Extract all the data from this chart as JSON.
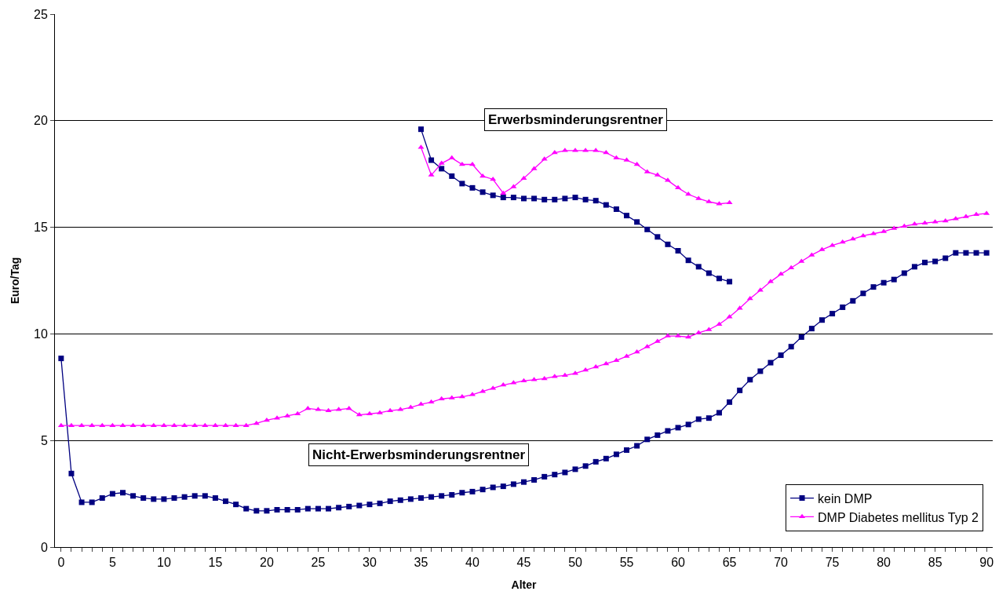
{
  "chart_data": {
    "type": "line",
    "xlabel": "Alter",
    "ylabel": "Euro/Tag",
    "xlim": [
      -0.6,
      90.6
    ],
    "ylim": [
      0,
      25
    ],
    "yticks": [
      0,
      5,
      10,
      15,
      20,
      25
    ],
    "xticks": [
      0,
      {
        "value": 1,
        "label": null
      },
      {
        "value": 2,
        "label": null
      },
      {
        "value": 3,
        "label": null
      },
      {
        "value": 4,
        "label": null
      },
      5,
      {
        "value": 6,
        "label": null
      },
      {
        "value": 7,
        "label": null
      },
      {
        "value": 8,
        "label": null
      },
      {
        "value": 9,
        "label": null
      },
      10,
      {
        "value": 11,
        "label": null
      },
      {
        "value": 12,
        "label": null
      },
      {
        "value": 13,
        "label": null
      },
      {
        "value": 14,
        "label": null
      },
      15,
      {
        "value": 16,
        "label": null
      },
      {
        "value": 17,
        "label": null
      },
      {
        "value": 18,
        "label": null
      },
      {
        "value": 19,
        "label": null
      },
      20,
      {
        "value": 21,
        "label": null
      },
      {
        "value": 22,
        "label": null
      },
      {
        "value": 23,
        "label": null
      },
      {
        "value": 24,
        "label": null
      },
      25,
      {
        "value": 26,
        "label": null
      },
      {
        "value": 27,
        "label": null
      },
      {
        "value": 28,
        "label": null
      },
      {
        "value": 29,
        "label": null
      },
      30,
      {
        "value": 31,
        "label": null
      },
      {
        "value": 32,
        "label": null
      },
      {
        "value": 33,
        "label": null
      },
      {
        "value": 34,
        "label": null
      },
      35,
      {
        "value": 36,
        "label": null
      },
      {
        "value": 37,
        "label": null
      },
      {
        "value": 38,
        "label": null
      },
      {
        "value": 39,
        "label": null
      },
      40,
      {
        "value": 41,
        "label": null
      },
      {
        "value": 42,
        "label": null
      },
      {
        "value": 43,
        "label": null
      },
      {
        "value": 44,
        "label": null
      },
      45,
      {
        "value": 46,
        "label": null
      },
      {
        "value": 47,
        "label": null
      },
      {
        "value": 48,
        "label": null
      },
      {
        "value": 49,
        "label": null
      },
      50,
      {
        "value": 51,
        "label": null
      },
      {
        "value": 52,
        "label": null
      },
      {
        "value": 53,
        "label": null
      },
      {
        "value": 54,
        "label": null
      },
      55,
      {
        "value": 56,
        "label": null
      },
      {
        "value": 57,
        "label": null
      },
      {
        "value": 58,
        "label": null
      },
      {
        "value": 59,
        "label": null
      },
      60,
      {
        "value": 61,
        "label": null
      },
      {
        "value": 62,
        "label": null
      },
      {
        "value": 63,
        "label": null
      },
      {
        "value": 64,
        "label": null
      },
      65,
      {
        "value": 66,
        "label": null
      },
      {
        "value": 67,
        "label": null
      },
      {
        "value": 68,
        "label": null
      },
      {
        "value": 69,
        "label": null
      },
      70,
      {
        "value": 71,
        "label": null
      },
      {
        "value": 72,
        "label": null
      },
      {
        "value": 73,
        "label": null
      },
      {
        "value": 74,
        "label": null
      },
      75,
      {
        "value": 76,
        "label": null
      },
      {
        "value": 77,
        "label": null
      },
      {
        "value": 78,
        "label": null
      },
      {
        "value": 79,
        "label": null
      },
      80,
      {
        "value": 81,
        "label": null
      },
      {
        "value": 82,
        "label": null
      },
      {
        "value": 83,
        "label": null
      },
      {
        "value": 84,
        "label": null
      },
      85,
      {
        "value": 86,
        "label": null
      },
      {
        "value": 87,
        "label": null
      },
      {
        "value": 88,
        "label": null
      },
      {
        "value": 89,
        "label": null
      },
      90
    ],
    "grid": "y",
    "legend": "bottom right",
    "annotations": [
      "Erwerbsminderungsrentner",
      "Nicht-Erwerbsminderungsrentner"
    ],
    "series": [
      {
        "name": "kein DMP",
        "color": "#000080",
        "marker": "square",
        "x": [
          0,
          1,
          2,
          3,
          4,
          5,
          6,
          7,
          8,
          9,
          10,
          11,
          12,
          13,
          14,
          15,
          16,
          17,
          18,
          19,
          20,
          21,
          22,
          23,
          24,
          25,
          26,
          27,
          28,
          29,
          30,
          31,
          32,
          33,
          34,
          35,
          36,
          37,
          38,
          39,
          40,
          41,
          42,
          43,
          44,
          45,
          46,
          47,
          48,
          49,
          50,
          51,
          52,
          53,
          54,
          55,
          56,
          57,
          58,
          59,
          60,
          61,
          62,
          63,
          64,
          65,
          66,
          67,
          68,
          69,
          70,
          71,
          72,
          73,
          74,
          75,
          76,
          77,
          78,
          79,
          80,
          81,
          82,
          83,
          84,
          85,
          86,
          87,
          88,
          89,
          90
        ],
        "values": [
          8.85,
          3.45,
          2.1,
          2.1,
          2.3,
          2.5,
          2.55,
          2.4,
          2.3,
          2.25,
          2.25,
          2.3,
          2.35,
          2.4,
          2.4,
          2.3,
          2.15,
          2.0,
          1.8,
          1.7,
          1.7,
          1.75,
          1.75,
          1.75,
          1.8,
          1.8,
          1.8,
          1.85,
          1.9,
          1.95,
          2.0,
          2.05,
          2.15,
          2.2,
          2.25,
          2.3,
          2.35,
          2.4,
          2.45,
          2.55,
          2.6,
          2.7,
          2.8,
          2.85,
          2.95,
          3.05,
          3.15,
          3.3,
          3.4,
          3.5,
          3.65,
          3.8,
          4.0,
          4.15,
          4.35,
          4.55,
          4.75,
          5.05,
          5.25,
          5.45,
          5.6,
          5.75,
          6.0,
          6.05,
          6.3,
          6.8,
          7.35,
          7.85,
          8.25,
          8.65,
          9.0,
          9.4,
          9.85,
          10.25,
          10.65,
          10.95,
          11.25,
          11.55,
          11.9,
          12.2,
          12.4,
          12.55,
          12.85,
          13.15,
          13.35,
          13.4,
          13.55,
          13.8,
          13.8,
          13.8,
          13.8
        ]
      },
      {
        "name": "DMP Diabetes mellitus Typ 2",
        "color": "#ff00ff",
        "marker": "triangle",
        "x": [
          0,
          1,
          2,
          3,
          4,
          5,
          6,
          7,
          8,
          9,
          10,
          11,
          12,
          13,
          14,
          15,
          16,
          17,
          18,
          19,
          20,
          21,
          22,
          23,
          24,
          25,
          26,
          27,
          28,
          29,
          30,
          31,
          32,
          33,
          34,
          35,
          36,
          37,
          38,
          39,
          40,
          41,
          42,
          43,
          44,
          45,
          46,
          47,
          48,
          49,
          50,
          51,
          52,
          53,
          54,
          55,
          56,
          57,
          58,
          59,
          60,
          61,
          62,
          63,
          64,
          65,
          66,
          67,
          68,
          69,
          70,
          71,
          72,
          73,
          74,
          75,
          76,
          77,
          78,
          79,
          80,
          81,
          82,
          83,
          84,
          85,
          86,
          87,
          88,
          89,
          90
        ],
        "values": [
          5.7,
          5.7,
          5.7,
          5.7,
          5.7,
          5.7,
          5.7,
          5.7,
          5.7,
          5.7,
          5.7,
          5.7,
          5.7,
          5.7,
          5.7,
          5.7,
          5.7,
          5.7,
          5.7,
          5.8,
          5.95,
          6.05,
          6.15,
          6.25,
          6.5,
          6.45,
          6.4,
          6.45,
          6.5,
          6.2,
          6.25,
          6.3,
          6.4,
          6.45,
          6.55,
          6.7,
          6.8,
          6.95,
          7.0,
          7.05,
          7.15,
          7.3,
          7.45,
          7.6,
          7.7,
          7.8,
          7.85,
          7.9,
          8.0,
          8.05,
          8.15,
          8.3,
          8.45,
          8.6,
          8.75,
          8.95,
          9.15,
          9.4,
          9.65,
          9.9,
          9.9,
          9.85,
          10.05,
          10.2,
          10.45,
          10.8,
          11.2,
          11.65,
          12.05,
          12.45,
          12.8,
          13.1,
          13.4,
          13.7,
          13.95,
          14.15,
          14.3,
          14.45,
          14.6,
          14.7,
          14.8,
          14.95,
          15.05,
          15.15,
          15.2,
          15.25,
          15.3,
          15.4,
          15.5,
          15.6,
          15.65
        ]
      },
      {
        "color": "#000080",
        "marker": "square",
        "x": [
          35,
          36,
          37,
          38,
          39,
          40,
          41,
          42,
          43,
          44,
          45,
          46,
          47,
          48,
          49,
          50,
          51,
          52,
          53,
          54,
          55,
          56,
          57,
          58,
          59,
          60,
          61,
          62,
          63,
          64,
          65
        ],
        "values": [
          19.6,
          18.15,
          17.75,
          17.4,
          17.05,
          16.85,
          16.65,
          16.5,
          16.4,
          16.4,
          16.35,
          16.35,
          16.3,
          16.3,
          16.35,
          16.4,
          16.3,
          16.25,
          16.05,
          15.85,
          15.55,
          15.25,
          14.9,
          14.55,
          14.2,
          13.9,
          13.45,
          13.15,
          12.85,
          12.6,
          12.45
        ]
      },
      {
        "color": "#ff00ff",
        "marker": "triangle",
        "x": [
          35,
          36,
          37,
          38,
          39,
          40,
          41,
          42,
          43,
          44,
          45,
          46,
          47,
          48,
          49,
          50,
          51,
          52,
          53,
          54,
          55,
          56,
          57,
          58,
          59,
          60,
          61,
          62,
          63,
          64,
          65
        ],
        "values": [
          18.75,
          17.45,
          18.0,
          18.25,
          17.95,
          17.95,
          17.4,
          17.25,
          16.6,
          16.9,
          17.3,
          17.75,
          18.2,
          18.5,
          18.6,
          18.6,
          18.6,
          18.6,
          18.5,
          18.25,
          18.15,
          17.95,
          17.6,
          17.45,
          17.2,
          16.85,
          16.55,
          16.35,
          16.2,
          16.1,
          16.15
        ]
      }
    ]
  }
}
